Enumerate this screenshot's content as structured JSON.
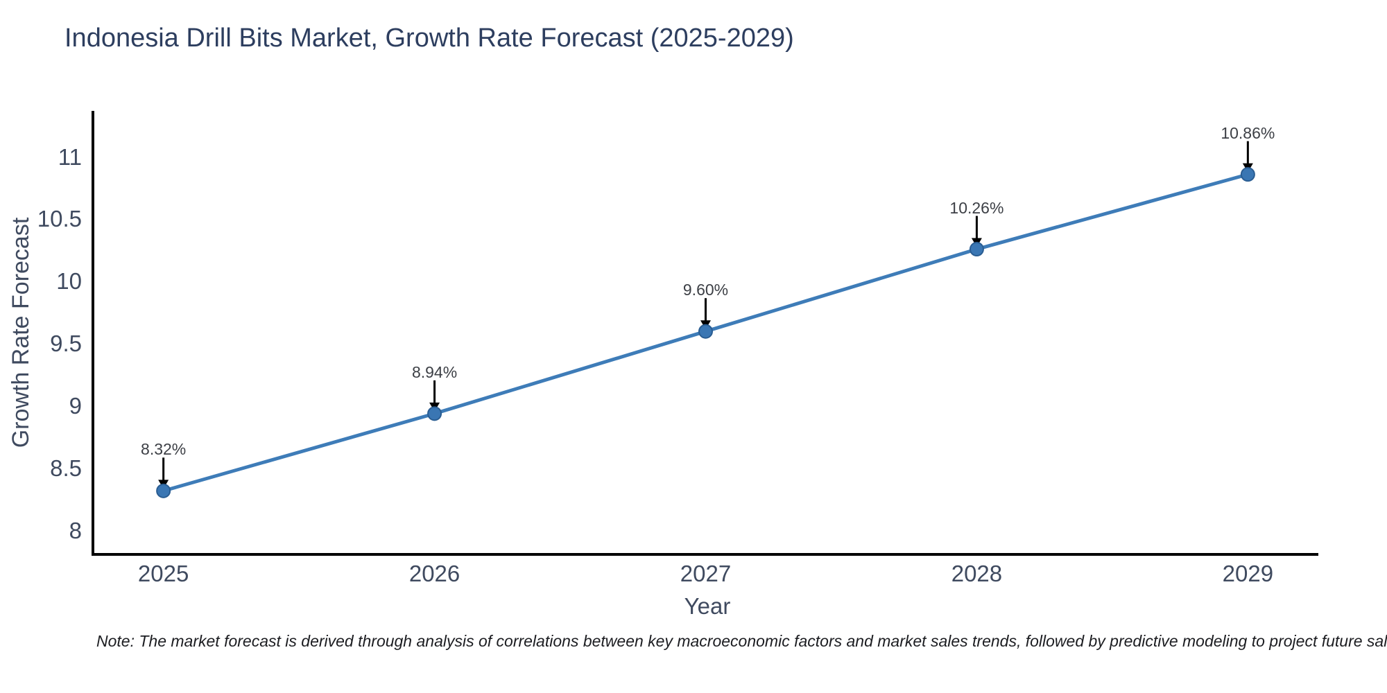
{
  "chart": {
    "title": "Indonesia Drill Bits Market, Growth Rate Forecast (2025-2029)",
    "xlabel": "Year",
    "ylabel": "Growth Rate Forecast",
    "note": "Note: The market forecast is derived through analysis of correlations between key macroeconomic factors and market sales trends, followed by predictive modeling to project future sal"
  },
  "chart_data": {
    "type": "line",
    "title": "Indonesia Drill Bits Market, Growth Rate Forecast (2025-2029)",
    "xlabel": "Year",
    "ylabel": "Growth Rate Forecast",
    "x": [
      2025,
      2026,
      2027,
      2028,
      2029
    ],
    "xtick_labels": [
      "2025",
      "2026",
      "2027",
      "2028",
      "2029"
    ],
    "series": [
      {
        "name": "Growth Rate Forecast",
        "values": [
          8.32,
          8.94,
          9.6,
          10.26,
          10.86
        ]
      }
    ],
    "point_labels": [
      "8.32%",
      "8.94%",
      "9.60%",
      "10.26%",
      "10.86%"
    ],
    "yticks": [
      8,
      8.5,
      9,
      9.5,
      10,
      10.5,
      11
    ],
    "ytick_labels": [
      "8",
      "8.5",
      "9",
      "9.5",
      "10",
      "10.5",
      "11"
    ],
    "ylim": [
      7.81,
      11.37
    ],
    "xlim": [
      2024.74,
      2029.26
    ],
    "grid": false,
    "legend": "none",
    "annotations_have_arrows": true,
    "colors": {
      "line": "#3e7cb8",
      "marker_fill": "#3a76b3",
      "marker_edge": "#2a5d92",
      "spine": "#000000",
      "arrow": "#000000"
    }
  }
}
